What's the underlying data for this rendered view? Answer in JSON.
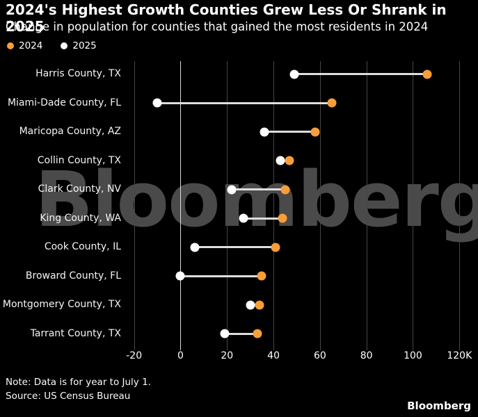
{
  "header": {
    "title": "2024's Highest Growth Counties Grew Less Or Shrank in 2025",
    "subtitle": "Change in population for counties that gained the most residents in 2024"
  },
  "legend": [
    {
      "label": "2024",
      "color": "#F79E39"
    },
    {
      "label": "2025",
      "color": "#FFFFFF"
    }
  ],
  "chart_data": {
    "type": "dumbbell",
    "title": "2024's Highest Growth Counties Grew Less Or Shrank in 2025",
    "subtitle": "Change in population for counties that gained the most residents in 2024",
    "value_format": "thousands of residents",
    "categories": [
      "Harris County, TX",
      "Miami-Dade County, FL",
      "Maricopa County, AZ",
      "Collin County, TX",
      "Clark County, NV",
      "King County, WA",
      "Cook County, IL",
      "Broward County, FL",
      "Montgomery County, TX",
      "Tarrant County, TX"
    ],
    "series": [
      {
        "name": "2024",
        "color": "#F79E39",
        "values": [
          106,
          65,
          58,
          47,
          45,
          44,
          41,
          35,
          34,
          33
        ]
      },
      {
        "name": "2025",
        "color": "#FFFFFF",
        "values": [
          49,
          -10,
          36,
          43,
          22,
          27,
          6,
          0,
          30,
          19
        ]
      }
    ],
    "xlim": [
      -22,
      125
    ],
    "zero_line": 0,
    "grid": true,
    "legend_position": "top-left",
    "ticks": [
      {
        "v": -20,
        "label": "-20"
      },
      {
        "v": 0,
        "label": "0"
      },
      {
        "v": 20,
        "label": "20"
      },
      {
        "v": 40,
        "label": "40"
      },
      {
        "v": 60,
        "label": "60"
      },
      {
        "v": 80,
        "label": "80"
      },
      {
        "v": 100,
        "label": "100"
      },
      {
        "v": 120,
        "label": "120K"
      }
    ]
  },
  "watermark": "Bloomberg",
  "footer": {
    "note": "Note: Data is for year to July 1.",
    "source": "Source: US Census Bureau",
    "logo": "Bloomberg"
  }
}
